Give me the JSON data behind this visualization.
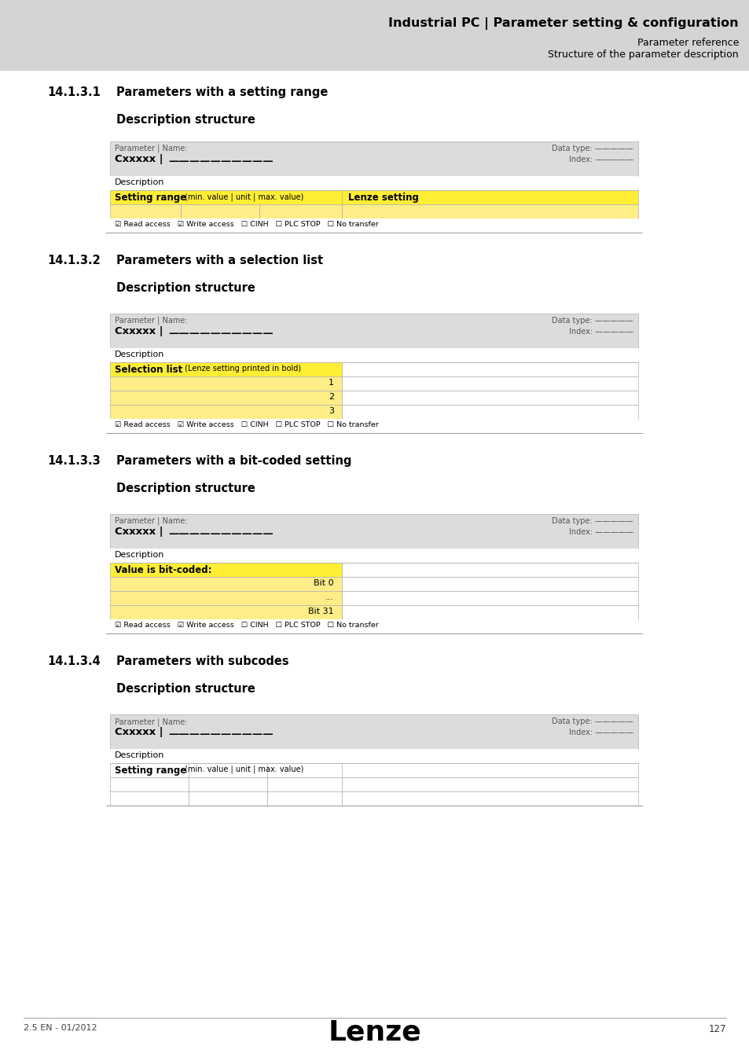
{
  "page_bg": "#ffffff",
  "header_bg": "#d4d4d4",
  "table_header_bg": "#dcdcdc",
  "yellow": "#ffee33",
  "yellow_row": "#ffee88",
  "white": "#ffffff",
  "border": "#bbbbbb",
  "header_title": "Industrial PC | Parameter setting & configuration",
  "header_sub1": "Parameter reference",
  "header_sub2": "Structure of the parameter description",
  "section1_num": "14.1.3.1",
  "section1_title": "Parameters with a setting range",
  "section2_num": "14.1.3.2",
  "section2_title": "Parameters with a selection list",
  "section3_num": "14.1.3.3",
  "section3_title": "Parameters with a bit-coded setting",
  "section4_num": "14.1.3.4",
  "section4_title": "Parameters with subcodes",
  "desc_structure": "Description structure",
  "param_label": "Parameter | Name:",
  "cxxxxx_bold": "Cxxxxx |",
  "underline_text": "——————————",
  "data_type_label": "Data type: —————",
  "index_label": "Index: —————",
  "description_label": "Description",
  "footer_checks": "☑ Read access   ☑ Write access   ☐ CINH   ☐ PLC STOP   ☐ No transfer",
  "footer_page": "127",
  "footer_version": "2.5 EN - 01/2012",
  "lenze_logo": "Lenze",
  "setting_range_bold": "Setting range",
  "setting_range_normal": " (min. value | unit | max. value)",
  "lenze_setting": "Lenze setting",
  "selection_list_bold": "Selection list",
  "selection_list_normal": " (Lenze setting printed in bold)",
  "bit_coded_bold": "Value is bit-coded:",
  "bit0": "Bit 0",
  "ellipsis": "...",
  "bit31": "Bit 31"
}
